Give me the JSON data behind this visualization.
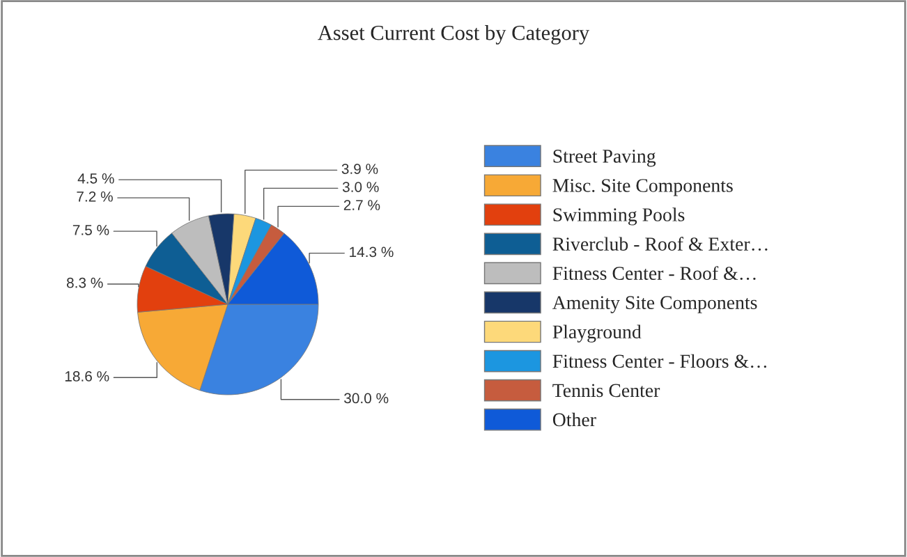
{
  "chart_data": {
    "type": "pie",
    "title": "Asset Current Cost by Category",
    "categories": [
      "Street Paving",
      "Misc. Site Components",
      "Swimming Pools",
      "Riverclub - Roof & Exter…",
      "Fitness Center - Roof &…",
      "Amenity Site Components",
      "Playground",
      "Fitness Center - Floors &…",
      "Tennis Center",
      "Other"
    ],
    "values": [
      30.0,
      18.6,
      8.3,
      7.5,
      7.2,
      4.5,
      3.9,
      3.0,
      2.7,
      14.3
    ],
    "value_labels": [
      "30.0 %",
      "18.6 %",
      "8.3 %",
      "7.5 %",
      "7.2 %",
      "4.5 %",
      "3.9 %",
      "3.0 %",
      "2.7 %",
      "14.3 %"
    ],
    "colors": [
      "#3a82e0",
      "#f7a936",
      "#e2400e",
      "#0e5e94",
      "#bdbdbd",
      "#173769",
      "#fdd97a",
      "#1c96e0",
      "#c65c3e",
      "#0f5ad8"
    ],
    "legend": "right"
  }
}
